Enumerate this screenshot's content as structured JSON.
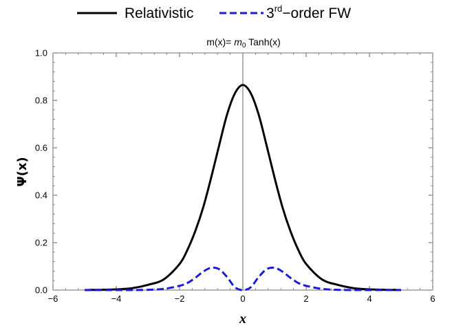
{
  "chart_data": {
    "type": "line",
    "title": {
      "prefix": "m(x)= ",
      "symbol": "m",
      "subscript": "0",
      "suffix": " Tanh(x)"
    },
    "xlabel": "x",
    "ylabel": "Ψ(x)",
    "xlim": [
      -6,
      6
    ],
    "ylim": [
      0,
      1.0
    ],
    "x_ticks": [
      "−6",
      "−4",
      "−2",
      "0",
      "2",
      "4",
      "6"
    ],
    "y_ticks": [
      "0.0",
      "0.2",
      "0.4",
      "0.6",
      "0.8",
      "1.0"
    ],
    "grid": false,
    "legend_position": "top-center",
    "legend": {
      "series1": {
        "text": "Relativistic"
      },
      "series2": {
        "base": "3",
        "superscript": "rd",
        "rest": "−order FW"
      }
    },
    "x": [
      -5.0,
      -4.5,
      -4.0,
      -3.5,
      -3.0,
      -2.5,
      -2.0,
      -1.75,
      -1.5,
      -1.25,
      -1.0,
      -0.75,
      -0.5,
      -0.25,
      0.0,
      0.25,
      0.5,
      0.75,
      1.0,
      1.25,
      1.5,
      1.75,
      2.0,
      2.5,
      3.0,
      3.5,
      4.0,
      4.5,
      5.0
    ],
    "series": [
      {
        "name": "Relativistic",
        "color": "#000000",
        "style": "solid",
        "values": [
          0.0003,
          0.001,
          0.0028,
          0.008,
          0.022,
          0.045,
          0.11,
          0.17,
          0.25,
          0.35,
          0.475,
          0.61,
          0.74,
          0.83,
          0.865,
          0.83,
          0.74,
          0.61,
          0.475,
          0.35,
          0.25,
          0.17,
          0.11,
          0.045,
          0.022,
          0.008,
          0.0028,
          0.001,
          0.0003
        ]
      },
      {
        "name": "3rd-order FW",
        "color": "#1a1adb",
        "style": "dashed",
        "values": [
          0.0,
          0.0,
          0.0,
          0.0,
          0.001,
          0.005,
          0.018,
          0.03,
          0.052,
          0.078,
          0.094,
          0.088,
          0.055,
          0.012,
          0.0,
          0.012,
          0.055,
          0.088,
          0.094,
          0.078,
          0.052,
          0.03,
          0.018,
          0.005,
          0.001,
          0.0,
          0.0,
          0.0,
          0.0
        ]
      }
    ]
  }
}
